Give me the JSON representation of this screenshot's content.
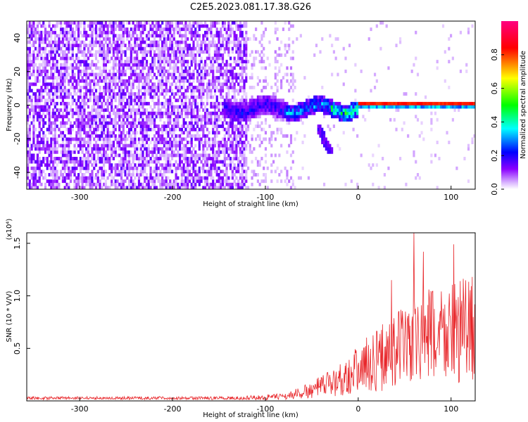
{
  "figure_title": "C2E5.2023.081.17.38.G26",
  "chart_data": [
    {
      "type": "heatmap",
      "xlabel": "Height of straight line (km)",
      "ylabel": "Frequency (Hz)",
      "xlim": [
        -357,
        126
      ],
      "ylim": [
        -50,
        50
      ],
      "xticks": [
        -300,
        -200,
        -100,
        0,
        100
      ],
      "xtick_labels": [
        "-300",
        "-200",
        "-100",
        "0",
        "100"
      ],
      "yticks": [
        -40,
        -20,
        0,
        20,
        40
      ],
      "ytick_labels": [
        "-40",
        "-20",
        "0",
        "20",
        "40"
      ],
      "colorbar": {
        "label": "Normalized spectral amplitude",
        "range": [
          0,
          1
        ],
        "ticks": [
          0.0,
          0.2,
          0.4,
          0.6,
          0.8
        ],
        "tick_labels": [
          "0.0",
          "0.2",
          "0.4",
          "0.6",
          "0.8"
        ],
        "colors": [
          "#ffffff",
          "#8a00ff",
          "#0000ff",
          "#00ffff",
          "#00ff00",
          "#ffff00",
          "#ff0000",
          "#ff0080"
        ]
      },
      "description_of_structure": {
        "noise_region_x": [
          -357,
          -120
        ],
        "faint_noise_x": [
          -120,
          -70
        ],
        "signal_onset_x": -145,
        "signal_strong_from_x": 0,
        "signal_frequency_hz": 0.5,
        "signal_peak_amplitude": 0.85
      },
      "grid": false
    },
    {
      "type": "line",
      "xlabel": "Height of straight line (km)",
      "ylabel": "SNR (10 * V/V)",
      "y_multiplier_label": "(x10⁴)",
      "xlim": [
        -357,
        126
      ],
      "ylim": [
        0,
        1.6
      ],
      "xticks": [
        -300,
        -200,
        -100,
        0,
        100
      ],
      "xtick_labels": [
        "-300",
        "-200",
        "-100",
        "0",
        "100"
      ],
      "yticks": [
        0.5,
        1.0,
        1.5
      ],
      "ytick_labels": [
        "0.5",
        "1.0",
        "1.5"
      ],
      "color": "#e8262a",
      "envelope": {
        "x": [
          -357,
          -200,
          -120,
          -80,
          -50,
          -20,
          0,
          30,
          60,
          90,
          126
        ],
        "y": [
          0.02,
          0.02,
          0.04,
          0.06,
          0.15,
          0.3,
          0.45,
          0.65,
          0.85,
          0.95,
          1.0
        ]
      },
      "spikes": [
        {
          "x": 60,
          "y": 1.6
        },
        {
          "x": 103,
          "y": 1.49
        },
        {
          "x": 70,
          "y": 1.42
        },
        {
          "x": 36,
          "y": 1.15
        },
        {
          "x": 123,
          "y": 1.18
        }
      ],
      "grid": false
    }
  ]
}
